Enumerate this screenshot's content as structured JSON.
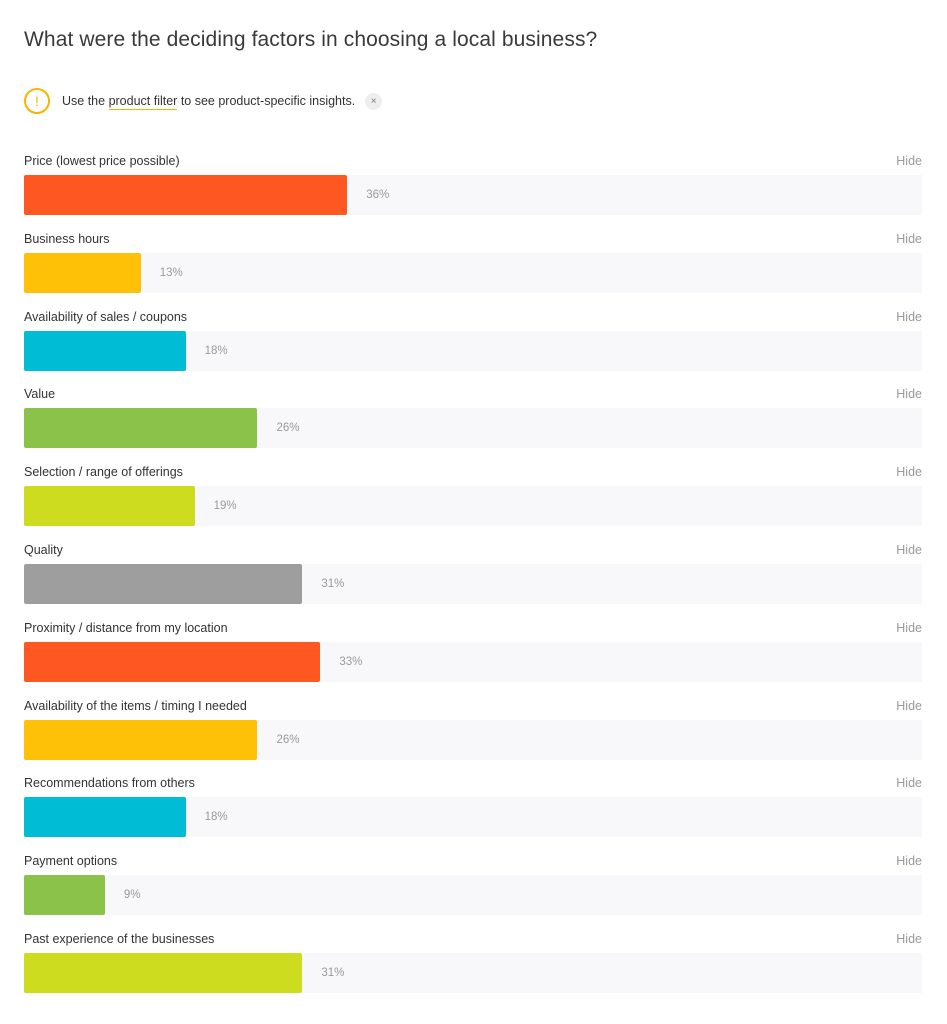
{
  "header": {
    "title": "What were the deciding factors in choosing a local business?"
  },
  "notice": {
    "icon": "warning-icon",
    "text_before": "Use the ",
    "link_text": "product filter",
    "text_after": " to see product-specific insights.",
    "close_label": "×"
  },
  "hide_label": "Hide",
  "chart_data": {
    "type": "bar",
    "orientation": "horizontal",
    "categories": [
      "Price (lowest price possible)",
      "Business hours",
      "Availability of sales / coupons",
      "Value",
      "Selection / range of offerings",
      "Quality",
      "Proximity / distance from my location",
      "Availability of the items / timing I needed",
      "Recommendations from others",
      "Payment options",
      "Past experience of the businesses"
    ],
    "values": [
      36,
      13,
      18,
      26,
      19,
      31,
      33,
      26,
      18,
      9,
      31
    ],
    "value_labels": [
      "36%",
      "13%",
      "18%",
      "26%",
      "19%",
      "31%",
      "33%",
      "26%",
      "18%",
      "9%",
      "31%"
    ],
    "colors": [
      "#ff5722",
      "#ffc107",
      "#00bcd4",
      "#8bc34a",
      "#cddc1f",
      "#9e9e9e",
      "#ff5722",
      "#ffc107",
      "#00bcd4",
      "#8bc34a",
      "#cddc1f"
    ],
    "xlim": [
      0,
      100
    ],
    "unit": "%"
  }
}
